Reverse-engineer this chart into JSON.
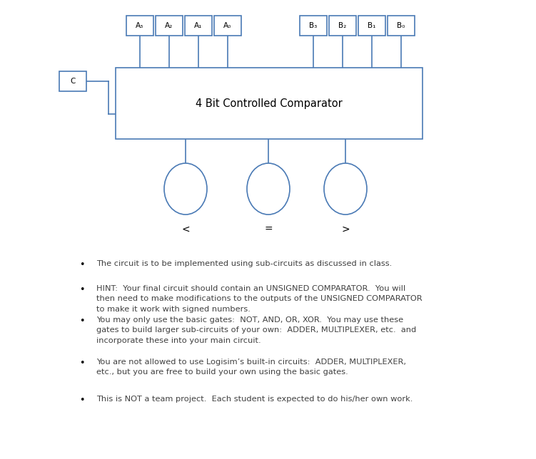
{
  "title": "4 Bit Controlled Comparator",
  "box_color": "#4A7AB5",
  "bg_color": "#ffffff",
  "a_labels": [
    "A₃",
    "A₂",
    "A₁",
    "A₀"
  ],
  "b_labels": [
    "B₃",
    "B₂",
    "B₁",
    "B₀"
  ],
  "c_label": "C",
  "output_labels": [
    "<",
    "=",
    ">"
  ],
  "bullet_points": [
    "The circuit is to be implemented using sub-circuits as discussed in class.",
    "HINT:  Your final circuit should contain an UNSIGNED COMPARATOR.  You will\nthen need to make modifications to the outputs of the UNSIGNED COMPARATOR\nto make it work with signed numbers.",
    "You may only use the basic gates:  NOT, AND, OR, XOR.  You may use these\ngates to build larger sub-circuits of your own:  ADDER, MULTIPLEXER, etc.  and\nincorporate these into your main circuit.",
    "You are not allowed to use Logisim’s built-in circuits:  ADDER, MULTIPLEXER,\netc., but you are free to build your own using the basic gates.",
    "This is NOT a team project.  Each student is expected to do his/her own work."
  ],
  "text_color": "#404040",
  "font_size_labels": 7.5,
  "font_size_title": 10.5,
  "font_size_bullet": 8.2,
  "font_size_output": 10,
  "lw": 1.2
}
